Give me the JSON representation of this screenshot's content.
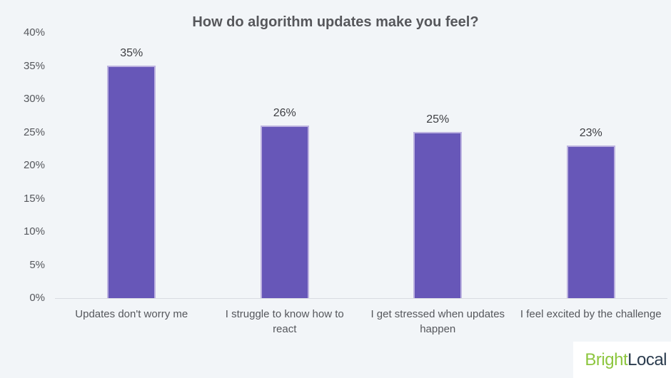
{
  "page": {
    "background": "#f2f5f8"
  },
  "chart_data": {
    "type": "bar",
    "title": "How do algorithm updates make you feel?",
    "categories": [
      "Updates don't worry me",
      "I struggle to know how to react",
      "I get stressed when updates happen",
      "I feel excited by the challenge"
    ],
    "category_display": [
      "Updates don't worry me",
      "I struggle to know how to\nreact",
      "I get stressed when updates\nhappen",
      "I feel excited by the challenge"
    ],
    "values": [
      35,
      26,
      25,
      23
    ],
    "value_labels": [
      "35%",
      "26%",
      "25%",
      "23%"
    ],
    "xlabel": "",
    "ylabel": "",
    "ylim": [
      0,
      40
    ],
    "y_ticks": [
      0,
      5,
      10,
      15,
      20,
      25,
      30,
      35,
      40
    ],
    "y_tick_suffix": "%",
    "grid": false,
    "legend": "none",
    "bar_color": "#6757b8",
    "bar_border_color": "#bdb3e0",
    "axis_line_color": "#d9dce1",
    "title_color": "#56575b",
    "label_color": "#55575c",
    "value_label_color": "#3e3f43"
  },
  "branding": {
    "bright": "Bright",
    "local": "Local",
    "bright_color": "#8dc63f",
    "local_color": "#2b3c4e",
    "box_color": "#ffffff"
  }
}
